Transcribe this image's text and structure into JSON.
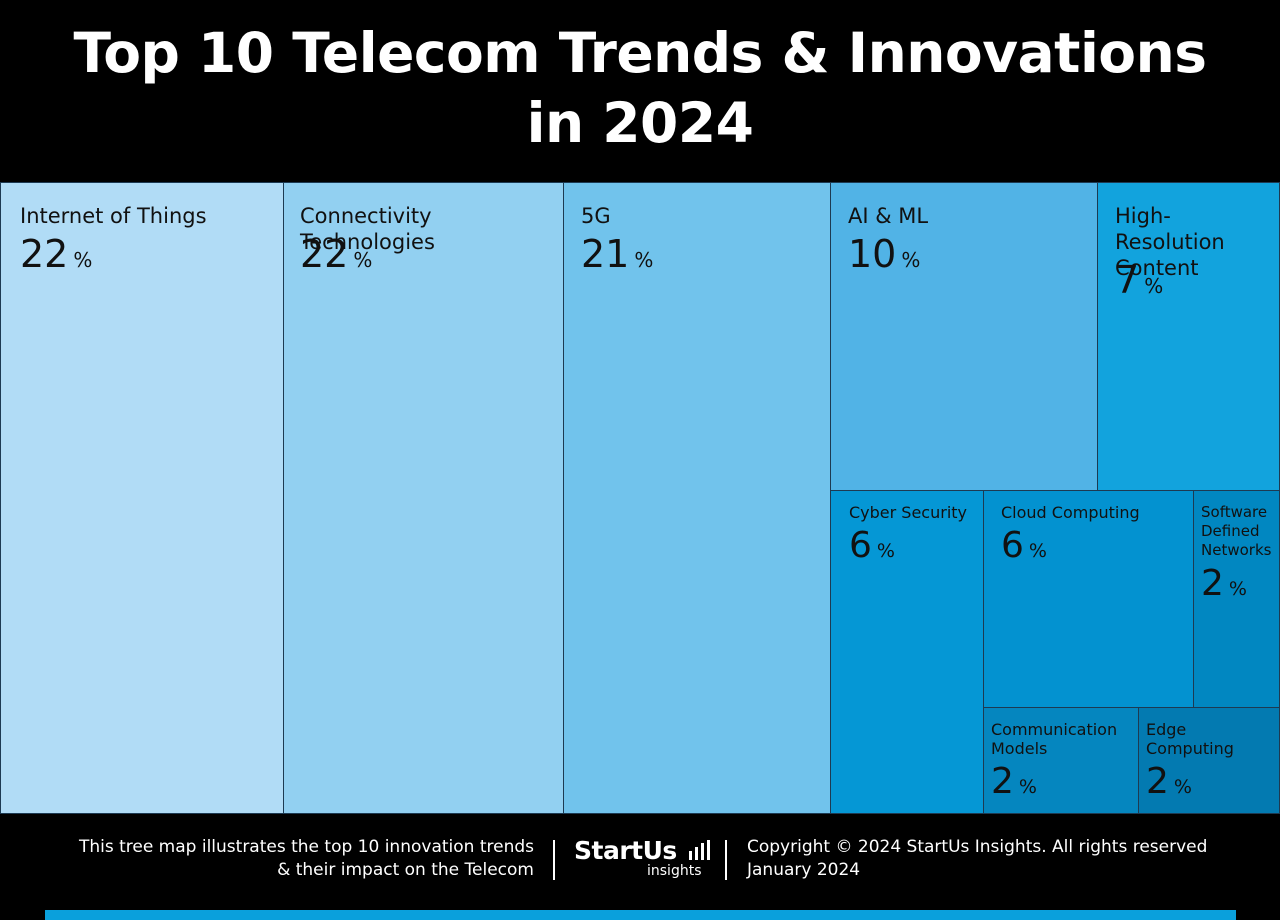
{
  "title": "Top 10 Telecom Trends & Innovations\nin 2024",
  "chart_data": {
    "type": "treemap",
    "title": "Top 10 Telecom Trends & Innovations in 2024",
    "items": [
      {
        "label": "Internet of Things",
        "value": 22,
        "color": "#b1dcf6"
      },
      {
        "label": "Connectivity Technologies",
        "value": 22,
        "color": "#92d0f1"
      },
      {
        "label": "5G",
        "value": 21,
        "color": "#71c3ec"
      },
      {
        "label": "AI & ML",
        "value": 10,
        "color": "#51b3e6"
      },
      {
        "label": "High-Resolution\nContent",
        "value": 7,
        "color": "#12a3dd"
      },
      {
        "label": "Cyber Security",
        "value": 6,
        "color": "#0597d5"
      },
      {
        "label": "Cloud Computing",
        "value": 6,
        "color": "#0392d0"
      },
      {
        "label": "Software\nDefined\nNetworks",
        "value": 2,
        "color": "#0187c1"
      },
      {
        "label": "Communication\nModels",
        "value": 2,
        "color": "#0586bf"
      },
      {
        "label": "Edge\nComputing",
        "value": 2,
        "color": "#037ab1"
      }
    ],
    "unit": "%"
  },
  "footer": {
    "description": "This tree map illustrates the top 10 innovation trends\n& their impact on the Telecom",
    "logo_brand": "StartUs",
    "logo_sub": "insights",
    "copyright": "Copyright © 2024 StartUs Insights. All rights reserved",
    "date": "January 2024"
  }
}
